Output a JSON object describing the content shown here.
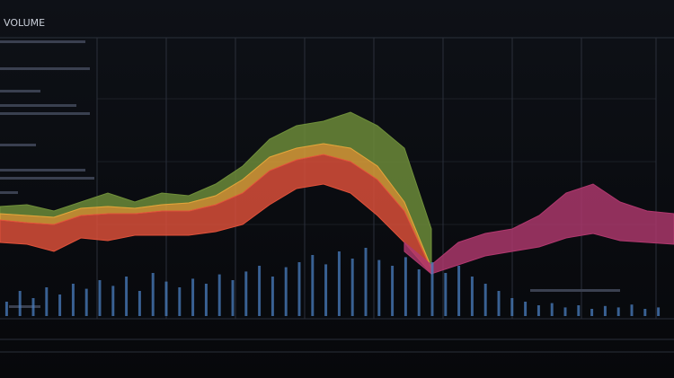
{
  "chart_data": [
    {
      "type": "range_area",
      "title": "VOLUME",
      "categories": [
        null,
        null,
        null,
        null,
        null,
        null,
        null,
        null,
        null,
        null,
        null,
        null,
        null,
        null,
        null,
        null,
        null,
        null,
        null,
        null,
        null,
        null,
        null,
        null,
        null,
        null
      ],
      "ylim": [
        0,
        290
      ],
      "series": [
        {
          "color": "#6f8f3a",
          "low": [
            92,
            90,
            88,
            98,
            100,
            98,
            102,
            104,
            112,
            130,
            155,
            165,
            170,
            165,
            145,
            105,
            32,
            null,
            null,
            null,
            null,
            null,
            null,
            null,
            null,
            null
          ],
          "values": [
            100,
            102,
            95,
            105,
            115,
            105,
            115,
            112,
            125,
            145,
            175,
            190,
            195,
            205,
            190,
            165,
            75,
            null,
            null,
            null,
            null,
            null,
            null,
            null,
            null,
            null
          ]
        },
        {
          "color": "#e3a43a",
          "low": [
            85,
            82,
            80,
            90,
            92,
            92,
            95,
            95,
            102,
            115,
            140,
            152,
            158,
            150,
            130,
            95,
            30,
            null,
            null,
            null,
            null,
            null,
            null,
            null,
            null,
            null
          ],
          "values": [
            92,
            90,
            88,
            98,
            100,
            98,
            102,
            104,
            112,
            130,
            155,
            165,
            170,
            165,
            145,
            105,
            32,
            null,
            null,
            null,
            null,
            null,
            null,
            null,
            null,
            null
          ]
        },
        {
          "color": "#e0513a",
          "low": [
            60,
            58,
            50,
            65,
            62,
            68,
            68,
            68,
            72,
            80,
            102,
            120,
            125,
            115,
            90,
            60,
            25,
            null,
            null,
            null,
            null,
            null,
            null,
            null,
            null,
            null
          ],
          "values": [
            85,
            82,
            80,
            90,
            92,
            92,
            95,
            95,
            102,
            115,
            140,
            152,
            158,
            150,
            130,
            95,
            30,
            null,
            null,
            null,
            null,
            null,
            null,
            null,
            null,
            null
          ]
        },
        {
          "color": "#b0386e",
          "low": [
            null,
            null,
            null,
            null,
            null,
            null,
            null,
            null,
            null,
            null,
            null,
            null,
            null,
            null,
            null,
            50,
            25,
            35,
            45,
            50,
            55,
            65,
            70,
            62,
            60,
            58
          ],
          "values": [
            null,
            null,
            null,
            null,
            null,
            null,
            null,
            null,
            null,
            null,
            null,
            null,
            null,
            null,
            null,
            60,
            35,
            60,
            70,
            75,
            90,
            115,
            125,
            105,
            95,
            92
          ]
        }
      ]
    },
    {
      "type": "bar",
      "color": "#4a7fc0",
      "categories": [
        null,
        null,
        null,
        null,
        null,
        null,
        null,
        null,
        null,
        null,
        null,
        null,
        null,
        null,
        null,
        null,
        null,
        null,
        null,
        null,
        null,
        null,
        null,
        null,
        null,
        null,
        null,
        null,
        null,
        null,
        null,
        null,
        null,
        null,
        null,
        null,
        null,
        null,
        null,
        null,
        null,
        null,
        null,
        null,
        null,
        null,
        null,
        null,
        null,
        null
      ],
      "ylim": [
        0,
        100
      ],
      "values": [
        20,
        35,
        25,
        40,
        30,
        45,
        38,
        50,
        42,
        55,
        35,
        60,
        48,
        40,
        52,
        45,
        58,
        50,
        62,
        70,
        55,
        68,
        75,
        85,
        72,
        90,
        80,
        95,
        78,
        70,
        82,
        65,
        75,
        60,
        70,
        55,
        45,
        35,
        25,
        20,
        15,
        18,
        12,
        15,
        10,
        14,
        12,
        16,
        10,
        12
      ]
    }
  ]
}
